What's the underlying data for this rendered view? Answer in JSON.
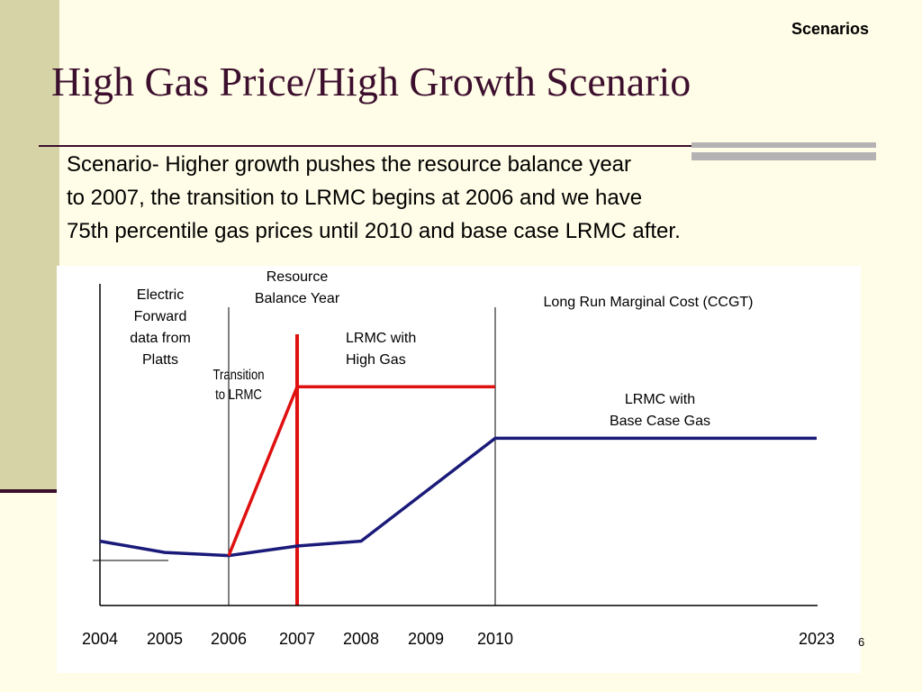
{
  "slide": {
    "section": "Scenarios",
    "title": "High Gas Price/High Growth Scenario",
    "description_lines": [
      "Scenario- Higher growth pushes the resource balance year",
      "to 2007, the transition to LRMC begins at 2006 and we have",
      "75th percentile gas prices until 2010 and base case LRMC after."
    ],
    "page_number": "6"
  },
  "colors": {
    "title": "#3d0f2e",
    "base_case_line": "#1a1a7a",
    "high_gas_line": "#e01010",
    "background": "#fffde7",
    "side_band": "#d6d3a6"
  },
  "chart_data": {
    "type": "line",
    "x_ticks": [
      "2004",
      "2005",
      "2006",
      "2007",
      "2008",
      "2009",
      "2010",
      "2023"
    ],
    "y_axis": {
      "ticks": "none",
      "label": ""
    },
    "series": [
      {
        "key": "base_case",
        "color": "#1a1a7a",
        "points": [
          [
            "2004",
            0.2
          ],
          [
            "2005",
            0.165
          ],
          [
            "2006",
            0.155
          ],
          [
            "2007",
            0.185
          ],
          [
            "2008",
            0.2
          ],
          [
            "2010",
            0.52
          ],
          [
            "2023",
            0.52
          ]
        ]
      },
      {
        "key": "high_gas",
        "color": "#e01010",
        "points": [
          [
            "2006",
            0.155
          ],
          [
            "2007",
            0.68
          ],
          [
            "2010",
            0.68
          ]
        ]
      }
    ],
    "reference_lines": [
      {
        "key": "transition",
        "x": "2006",
        "color": "#000000"
      },
      {
        "key": "resource_balance",
        "x": "2007",
        "color": "#e01010"
      },
      {
        "key": "lrmc_start",
        "x": "2010",
        "color": "#000000"
      }
    ],
    "annotations": {
      "electric_forward": [
        "Electric",
        "Forward",
        "data from",
        "Platts"
      ],
      "resource_balance": [
        "Resource",
        "Balance Year"
      ],
      "transition": [
        "Transition",
        "to LRMC"
      ],
      "lrmc_high_gas": [
        "LRMC with",
        "High Gas"
      ],
      "lrmc_base_case": [
        "LRMC with",
        "Base Case Gas"
      ],
      "long_run_marginal_cost": "Long Run Marginal Cost (CCGT)"
    }
  }
}
